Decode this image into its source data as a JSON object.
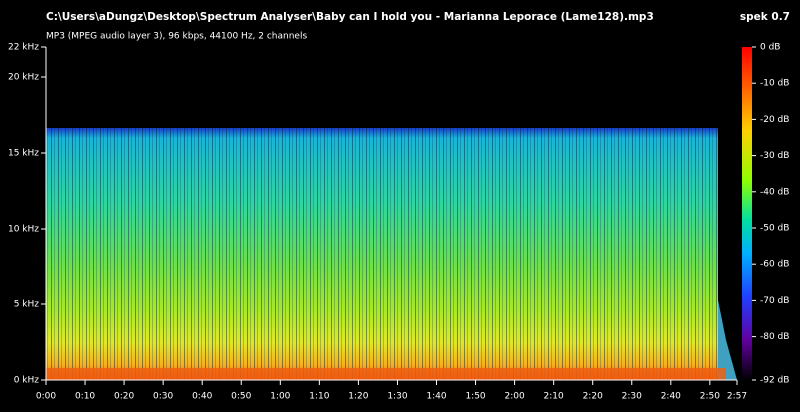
{
  "header": {
    "file_path": "C:\\Users\\aDungz\\Desktop\\Spectrum Analyser\\Baby can I hold you - Marianna Leporace (Lame128).mp3",
    "app": "spek 0.7",
    "file_info": "MP3 (MPEG audio layer 3), 96 kbps, 44100 Hz, 2 channels"
  },
  "frequency_axis": {
    "labels": [
      "22 kHz",
      "20 kHz",
      "15 kHz",
      "10 kHz",
      "5 kHz",
      "0 kHz"
    ]
  },
  "time_axis": {
    "labels": [
      "0:00",
      "0:10",
      "0:20",
      "0:30",
      "0:40",
      "0:50",
      "1:00",
      "1:10",
      "1:20",
      "1:30",
      "1:40",
      "1:50",
      "2:00",
      "2:10",
      "2:20",
      "2:30",
      "2:40",
      "2:50",
      "2:57"
    ]
  },
  "color_scale": {
    "labels": [
      "0 dB",
      "-10 dB",
      "-20 dB",
      "-30 dB",
      "-40 dB",
      "-50 dB",
      "-60 dB",
      "-70 dB",
      "-80 dB",
      "-92 dB"
    ]
  }
}
